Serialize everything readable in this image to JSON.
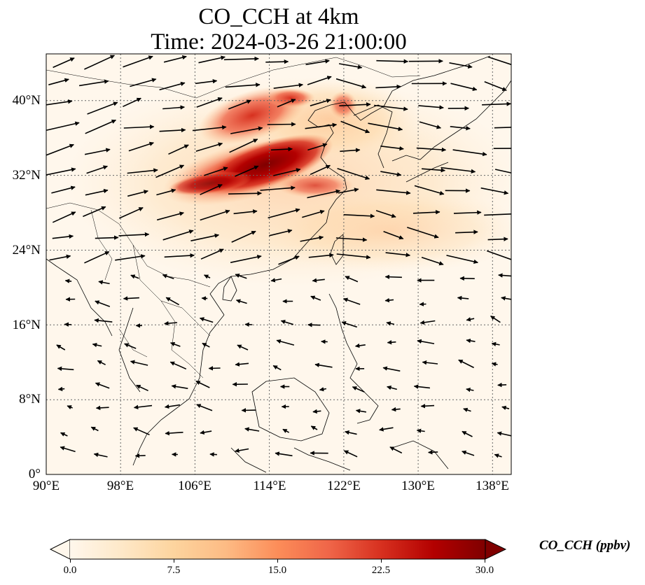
{
  "title": {
    "line1": "CO_CCH at 4km",
    "line2": "Time: 2024-03-26 21:00:00"
  },
  "map": {
    "projection": "PlateCarree",
    "lon_range": [
      90,
      140
    ],
    "lat_range": [
      0,
      45
    ],
    "gridlines": "dotted",
    "xticks": [
      "90°E",
      "98°E",
      "106°E",
      "114°E",
      "122°E",
      "130°E",
      "138°E"
    ],
    "yticks": [
      "0°",
      "8°N",
      "16°N",
      "24°N",
      "32°N",
      "40°N"
    ],
    "field": {
      "variable": "CO_CCH",
      "units": "ppbv",
      "max_region": "central/eastern China (~108–118°E, 30–36°N)",
      "secondary_plume": "North China / Bohai (~110–122°E, 36–40°N)"
    },
    "wind_vectors": "black quiver arrows, strong westerlies north of ~24°N, weak easterlies/northeasterlies south"
  },
  "colorbar": {
    "colormap": "OrRd",
    "range": [
      0,
      30
    ],
    "extend": "both",
    "ticks": [
      "0.0",
      "7.5",
      "15.0",
      "22.5",
      "30.0"
    ],
    "label": "CO_CCH (ppbv)",
    "colors": [
      "#fff7ec",
      "#fee8c8",
      "#fdd49e",
      "#fdbb84",
      "#fc8d59",
      "#ef6548",
      "#d7301f",
      "#b30000",
      "#7f0000"
    ]
  }
}
